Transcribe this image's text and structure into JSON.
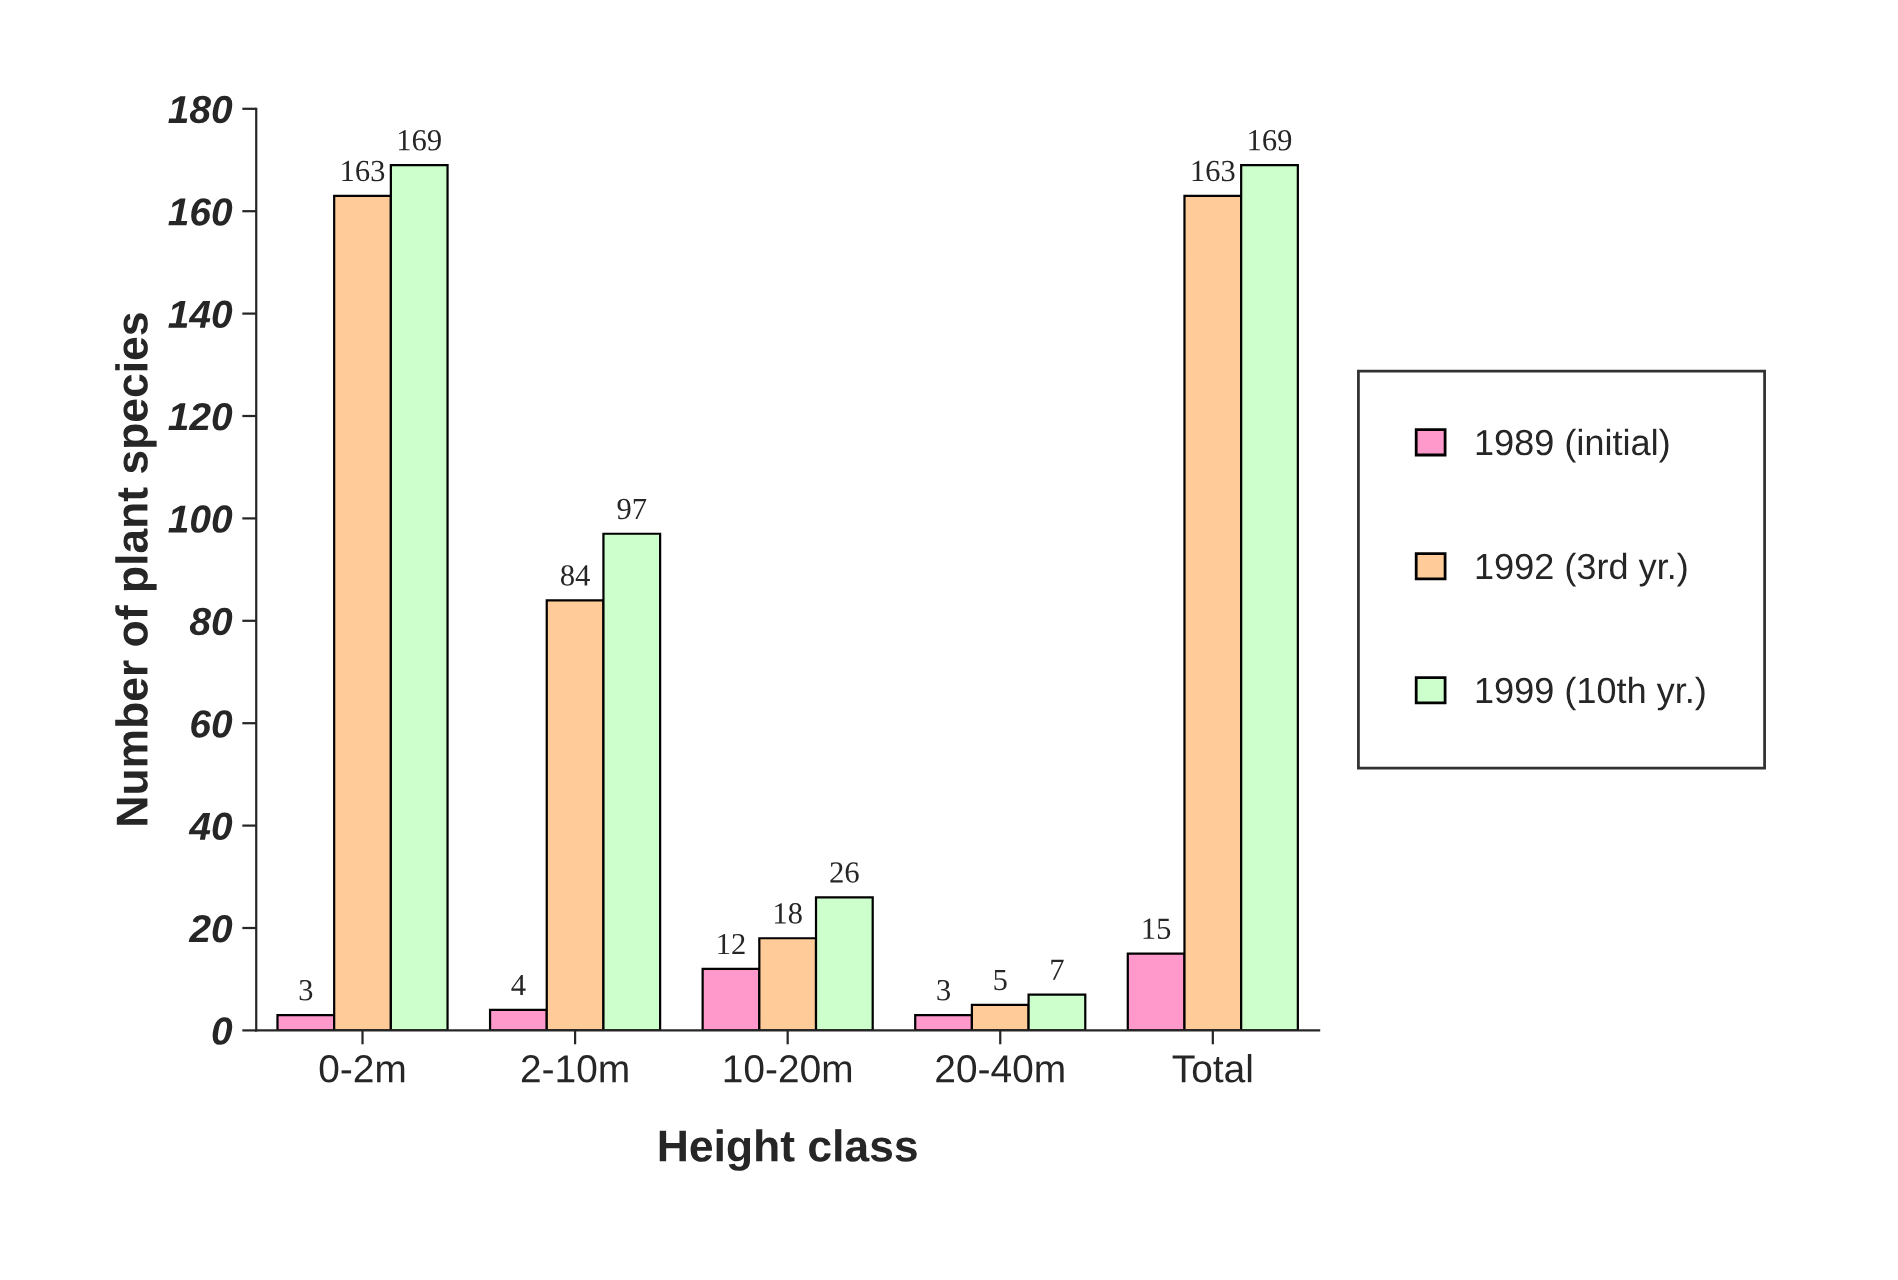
{
  "chart_data": {
    "type": "bar",
    "xlabel": "Height class",
    "ylabel": "Number of plant species",
    "categories": [
      "0-2m",
      "2-10m",
      "10-20m",
      "20-40m",
      "Total"
    ],
    "series": [
      {
        "name": "1989 (initial)",
        "color": "#ff99cc",
        "values": [
          3,
          4,
          12,
          3,
          15
        ]
      },
      {
        "name": "1992 (3rd yr.)",
        "color": "#ffcc99",
        "values": [
          163,
          84,
          18,
          5,
          163
        ]
      },
      {
        "name": "1999 (10th yr.)",
        "color": "#ccffcc",
        "values": [
          169,
          97,
          26,
          7,
          169
        ]
      }
    ],
    "ylim": [
      0,
      180
    ],
    "yticks": [
      0,
      20,
      40,
      60,
      80,
      100,
      120,
      140,
      160,
      180
    ],
    "data_labels": true,
    "legend": "right",
    "grid": false
  }
}
